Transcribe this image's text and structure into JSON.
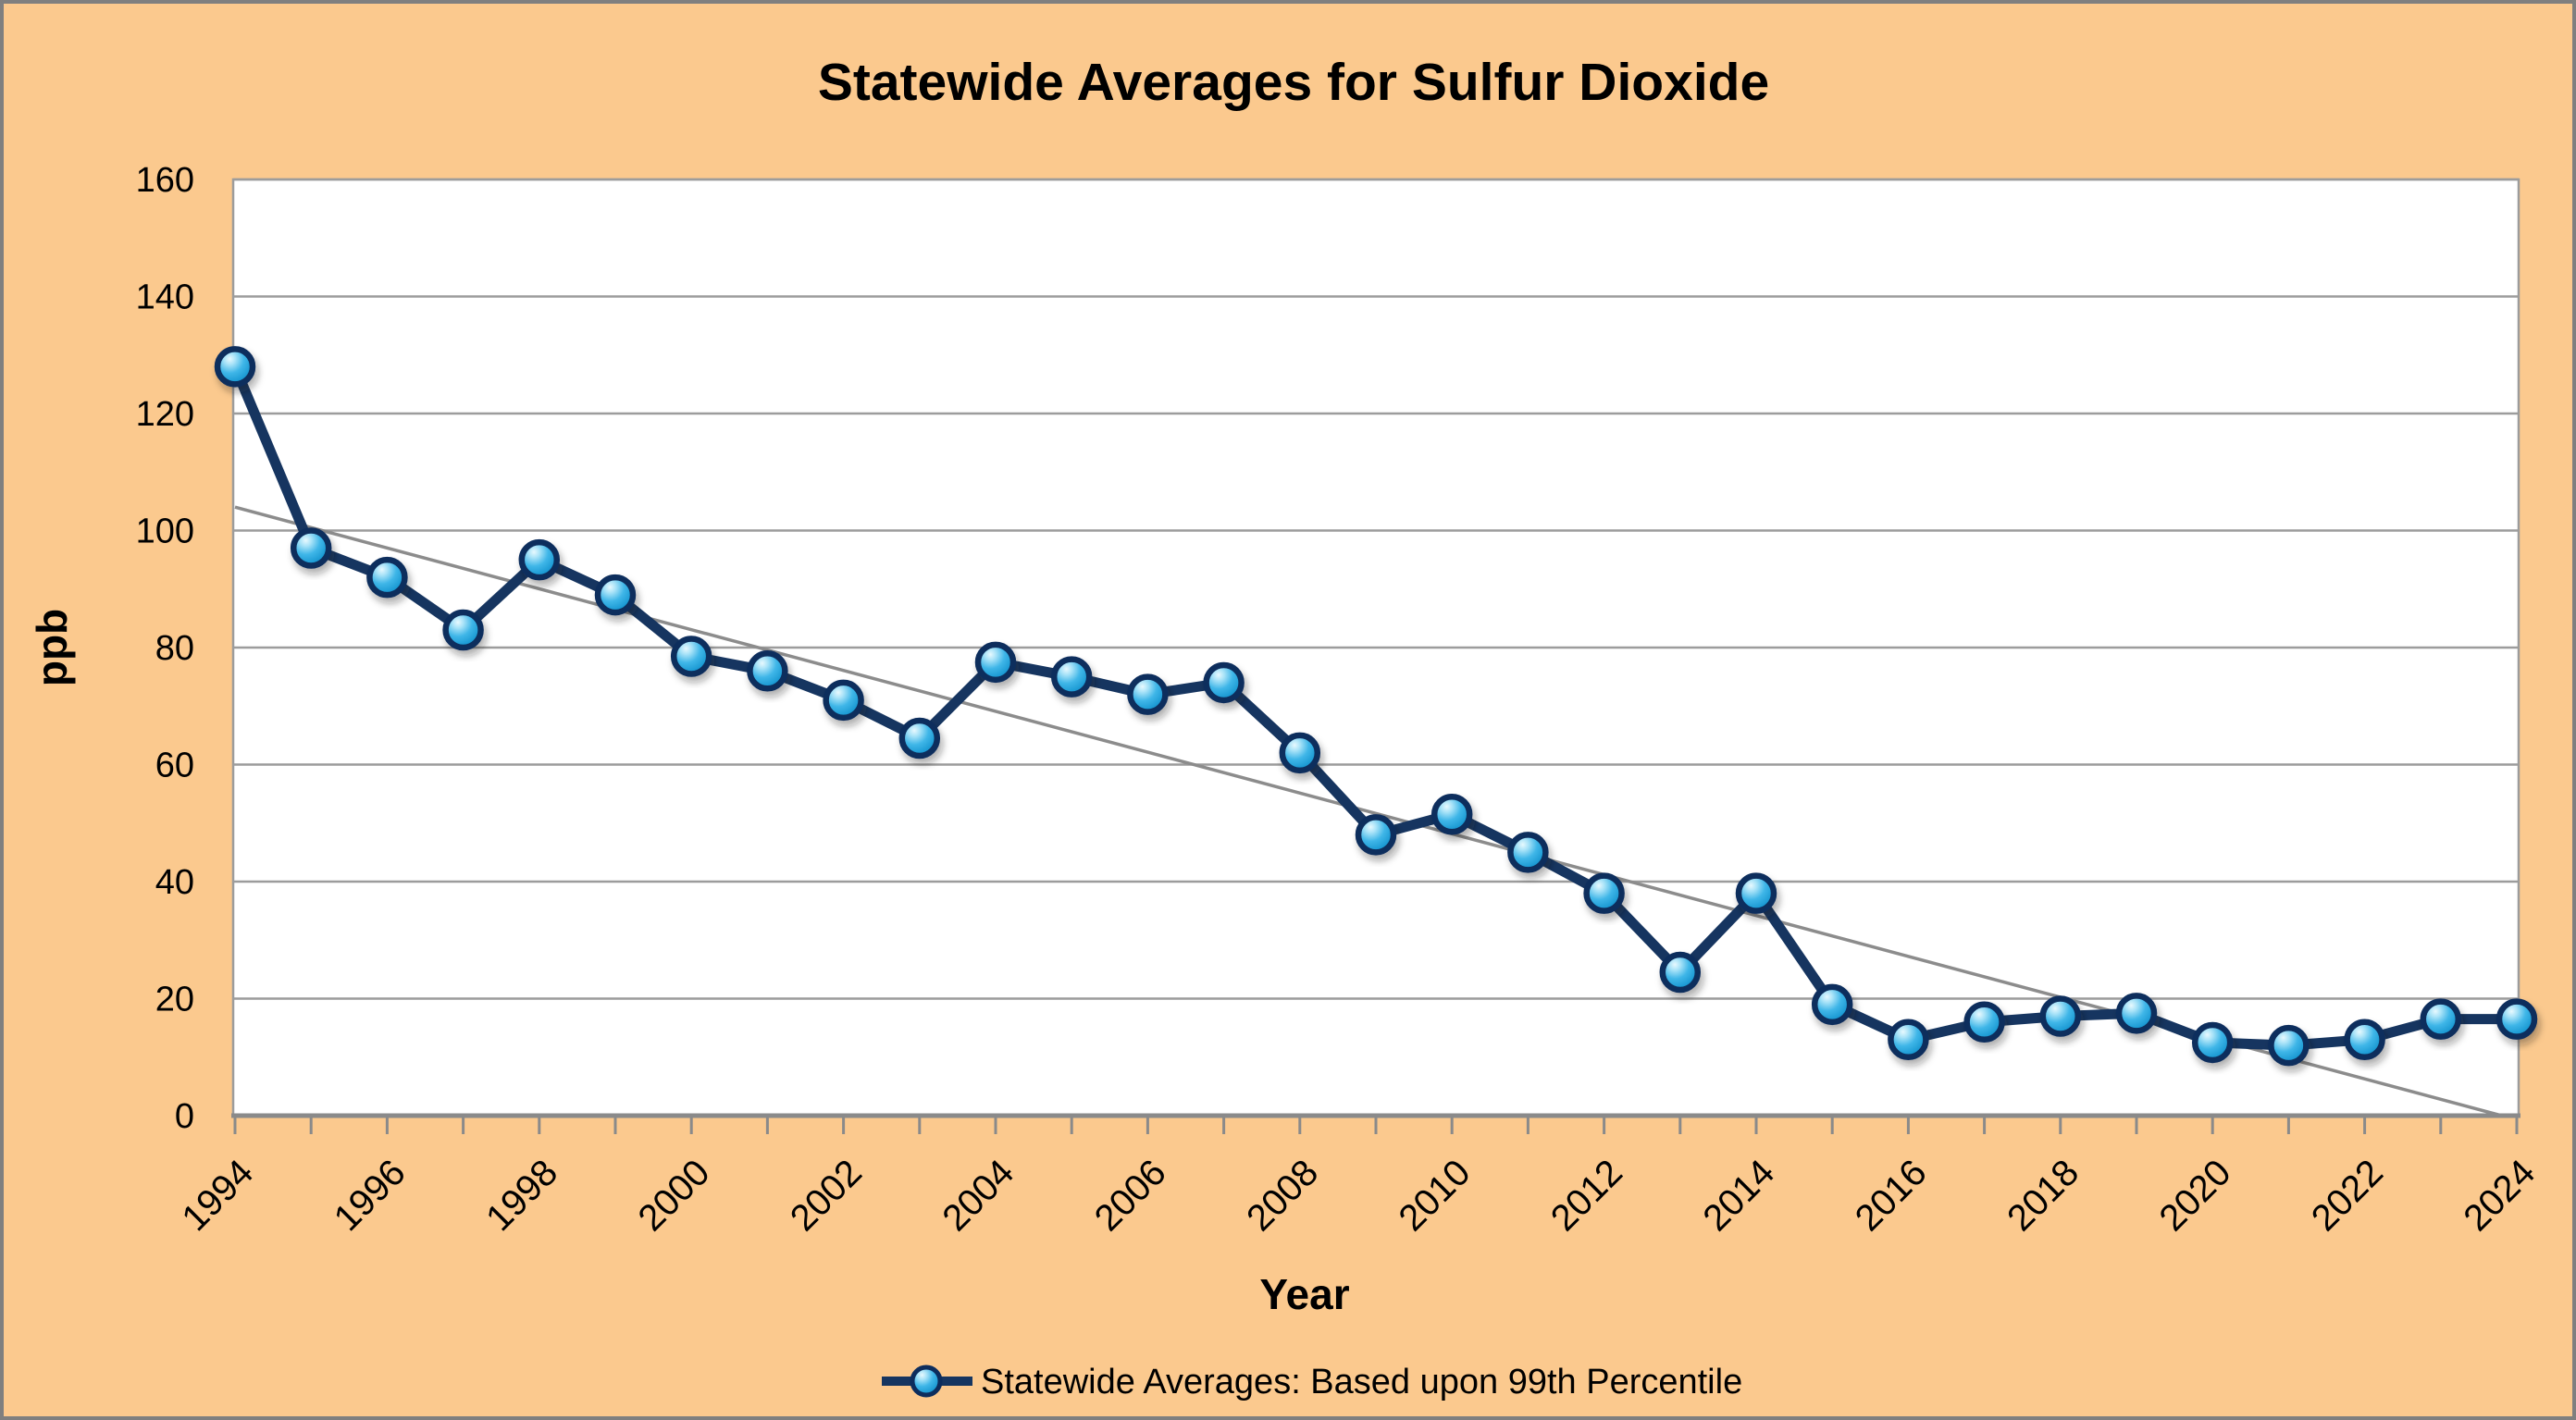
{
  "chart_data": {
    "type": "line",
    "title": "Statewide Averages for Sulfur Dioxide",
    "xlabel": "Year",
    "ylabel": "ppb",
    "ylim": [
      0,
      160
    ],
    "ytick_step": 20,
    "yticks": [
      160,
      140,
      120,
      100,
      80,
      60,
      40,
      20,
      0
    ],
    "grid": "horizontal",
    "legend_position": "bottom",
    "x": [
      1994,
      1995,
      1996,
      1997,
      1998,
      1999,
      2000,
      2001,
      2002,
      2003,
      2004,
      2005,
      2006,
      2007,
      2008,
      2009,
      2010,
      2011,
      2012,
      2013,
      2014,
      2015,
      2016,
      2017,
      2018,
      2019,
      2020,
      2021,
      2022,
      2023,
      2024
    ],
    "xtick_labels": [
      "1994",
      "1996",
      "1998",
      "2000",
      "2002",
      "2004",
      "2006",
      "2008",
      "2010",
      "2012",
      "2014",
      "2016",
      "2018",
      "2020",
      "2022",
      "2024"
    ],
    "series": [
      {
        "name": "Statewide Averages: Based upon 99th Percentile",
        "values": [
          128,
          97,
          92,
          83,
          95,
          89,
          78.5,
          76,
          71,
          64.5,
          77.5,
          75,
          72,
          74,
          62,
          48,
          51.5,
          45,
          38,
          24.5,
          38,
          19,
          13,
          16,
          17,
          17.5,
          12.5,
          12,
          13,
          16.5,
          16.5
        ]
      }
    ],
    "trendline": {
      "description": "linear trend, gray",
      "start_year": 1994,
      "start_value": 104,
      "zero_cross_year": 2023.8
    }
  },
  "legend": {
    "label": "Statewide Averages: Based upon 99th Percentile"
  },
  "colors": {
    "background": "#FBC98E",
    "frame_border": "#7F7F7F",
    "plot_background": "#FFFFFF",
    "plot_border": "#9C9C9C",
    "gridline": "#9C9C9C",
    "axis_line": "#8A8A8A",
    "tick": "#8A8A8A",
    "trendline": "#8C8C8C",
    "series_line": "#163560",
    "marker_ring": "#0D2D5D",
    "marker_core": "#25A7DF",
    "marker_highlight": "#E8F9FE",
    "marker_deep": "#0C74AC",
    "text": "#000000"
  }
}
